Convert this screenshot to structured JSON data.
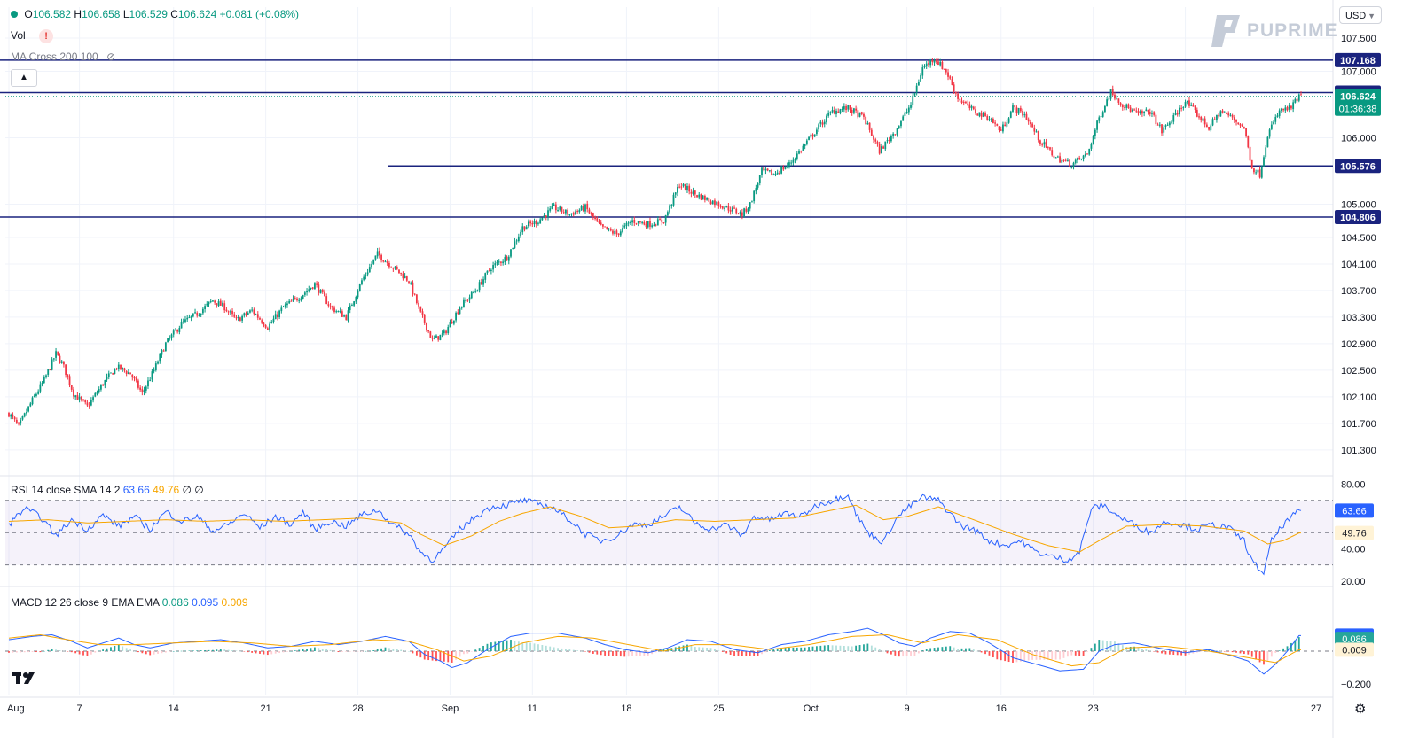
{
  "legend": {
    "open_label": "O",
    "open": "106.582",
    "high_label": "H",
    "high": "106.658",
    "low_label": "L",
    "low": "106.529",
    "close_label": "C",
    "close": "106.624",
    "change": "+0.081 (+0.08%)",
    "vol_label": "Vol",
    "ma_label": "MA Cross 200 100"
  },
  "brand": {
    "logo_text": "PUPRIME"
  },
  "currency": {
    "label": "USD"
  },
  "price_axis": {
    "ticks": [
      "107.500",
      "107.000",
      "106.000",
      "105.000",
      "104.500",
      "104.100",
      "103.700",
      "103.300",
      "102.900",
      "102.500",
      "102.100",
      "101.700",
      "101.300"
    ],
    "levels": [
      {
        "value": "107.168"
      },
      {
        "value": "106.680"
      },
      {
        "value": "105.576"
      },
      {
        "value": "104.806"
      }
    ],
    "current_price": "106.624",
    "countdown": "01:36:38"
  },
  "rsi": {
    "label": "RSI 14 close SMA 14 2",
    "rsi_value": "63.66",
    "sma_value": "49.76",
    "extra": "∅ ∅",
    "ticks": [
      "80.00",
      "40.00",
      "20.00"
    ]
  },
  "macd": {
    "label": "MACD 12 26 close 9 EMA EMA",
    "macd_value": "0.095",
    "signal_value": "0.009",
    "hist_value": "0.086",
    "ticks": [
      "0.095",
      "−0.200"
    ]
  },
  "time_axis": [
    "Aug",
    "7",
    "14",
    "21",
    "28",
    "Sep",
    "11",
    "18",
    "25",
    "Oct",
    "9",
    "16",
    "23",
    "27"
  ],
  "colors": {
    "up": "#089981",
    "down": "#f23645",
    "level_line": "#1a237e",
    "level_tag": "#1a237e",
    "rsi_line": "#2962ff",
    "sma_line": "#f7a600",
    "rsi_band": "#7e57c2"
  },
  "chart_data": {
    "type": "candlestick",
    "symbol_timeframe": "hourly-like OHLC series",
    "ylim": [
      101.0,
      107.6
    ],
    "anchors": [
      [
        0,
        101.85
      ],
      [
        5,
        101.65
      ],
      [
        12,
        102.05
      ],
      [
        18,
        102.35
      ],
      [
        24,
        102.75
      ],
      [
        28,
        102.55
      ],
      [
        33,
        102.15
      ],
      [
        40,
        101.95
      ],
      [
        48,
        102.3
      ],
      [
        55,
        102.55
      ],
      [
        62,
        102.45
      ],
      [
        68,
        102.15
      ],
      [
        74,
        102.5
      ],
      [
        80,
        102.9
      ],
      [
        88,
        103.2
      ],
      [
        96,
        103.35
      ],
      [
        104,
        103.55
      ],
      [
        110,
        103.45
      ],
      [
        116,
        103.25
      ],
      [
        124,
        103.4
      ],
      [
        132,
        103.15
      ],
      [
        140,
        103.45
      ],
      [
        148,
        103.6
      ],
      [
        156,
        103.8
      ],
      [
        164,
        103.45
      ],
      [
        172,
        103.3
      ],
      [
        180,
        103.85
      ],
      [
        188,
        104.25
      ],
      [
        196,
        104.05
      ],
      [
        204,
        103.85
      ],
      [
        210,
        103.35
      ],
      [
        216,
        102.95
      ],
      [
        222,
        103.05
      ],
      [
        230,
        103.45
      ],
      [
        238,
        103.7
      ],
      [
        246,
        104.05
      ],
      [
        254,
        104.2
      ],
      [
        262,
        104.65
      ],
      [
        270,
        104.75
      ],
      [
        278,
        104.95
      ],
      [
        286,
        104.85
      ],
      [
        294,
        104.95
      ],
      [
        302,
        104.65
      ],
      [
        310,
        104.55
      ],
      [
        318,
        104.75
      ],
      [
        326,
        104.7
      ],
      [
        334,
        104.75
      ],
      [
        342,
        105.3
      ],
      [
        350,
        105.15
      ],
      [
        358,
        105.05
      ],
      [
        366,
        104.95
      ],
      [
        374,
        104.85
      ],
      [
        378,
        105.0
      ],
      [
        384,
        105.5
      ],
      [
        390,
        105.45
      ],
      [
        398,
        105.6
      ],
      [
        406,
        105.9
      ],
      [
        414,
        106.2
      ],
      [
        420,
        106.4
      ],
      [
        428,
        106.45
      ],
      [
        436,
        106.3
      ],
      [
        444,
        105.8
      ],
      [
        452,
        106.1
      ],
      [
        460,
        106.5
      ],
      [
        466,
        107.05
      ],
      [
        472,
        107.2
      ],
      [
        478,
        107.0
      ],
      [
        484,
        106.6
      ],
      [
        492,
        106.4
      ],
      [
        500,
        106.3
      ],
      [
        506,
        106.1
      ],
      [
        512,
        106.45
      ],
      [
        518,
        106.35
      ],
      [
        526,
        105.95
      ],
      [
        534,
        105.7
      ],
      [
        542,
        105.6
      ],
      [
        550,
        105.75
      ],
      [
        556,
        106.3
      ],
      [
        562,
        106.7
      ],
      [
        568,
        106.5
      ],
      [
        576,
        106.35
      ],
      [
        582,
        106.4
      ],
      [
        588,
        106.1
      ],
      [
        594,
        106.3
      ],
      [
        600,
        106.55
      ],
      [
        606,
        106.35
      ],
      [
        612,
        106.15
      ],
      [
        618,
        106.4
      ],
      [
        624,
        106.3
      ],
      [
        630,
        106.15
      ],
      [
        634,
        105.55
      ],
      [
        638,
        105.45
      ],
      [
        642,
        106.05
      ],
      [
        648,
        106.4
      ],
      [
        654,
        106.45
      ],
      [
        658,
        106.62
      ]
    ],
    "levels": [
      107.168,
      106.68,
      105.576,
      104.806
    ],
    "rsi": {
      "ylim": [
        20,
        80
      ],
      "upper_band": 70,
      "lower_band": 30,
      "mid": 50,
      "rsi_anchors": [
        [
          0,
          55
        ],
        [
          8,
          65
        ],
        [
          16,
          60
        ],
        [
          24,
          48
        ],
        [
          32,
          58
        ],
        [
          40,
          52
        ],
        [
          48,
          61
        ],
        [
          56,
          54
        ],
        [
          64,
          60
        ],
        [
          72,
          52
        ],
        [
          80,
          63
        ],
        [
          88,
          57
        ],
        [
          96,
          60
        ],
        [
          104,
          51
        ],
        [
          112,
          55
        ],
        [
          120,
          62
        ],
        [
          128,
          53
        ],
        [
          136,
          60
        ],
        [
          144,
          55
        ],
        [
          150,
          63
        ],
        [
          156,
          52
        ],
        [
          164,
          57
        ],
        [
          172,
          54
        ],
        [
          180,
          61
        ],
        [
          188,
          64
        ],
        [
          196,
          55
        ],
        [
          204,
          49
        ],
        [
          210,
          38
        ],
        [
          216,
          33
        ],
        [
          222,
          40
        ],
        [
          230,
          52
        ],
        [
          238,
          60
        ],
        [
          246,
          66
        ],
        [
          254,
          67
        ],
        [
          262,
          70
        ],
        [
          270,
          68
        ],
        [
          278,
          65
        ],
        [
          286,
          58
        ],
        [
          294,
          49
        ],
        [
          302,
          45
        ],
        [
          310,
          48
        ],
        [
          318,
          55
        ],
        [
          326,
          55
        ],
        [
          334,
          60
        ],
        [
          342,
          66
        ],
        [
          350,
          56
        ],
        [
          358,
          52
        ],
        [
          366,
          55
        ],
        [
          374,
          48
        ],
        [
          380,
          60
        ],
        [
          388,
          58
        ],
        [
          396,
          62
        ],
        [
          404,
          60
        ],
        [
          412,
          67
        ],
        [
          420,
          70
        ],
        [
          428,
          74
        ],
        [
          432,
          62
        ],
        [
          438,
          50
        ],
        [
          446,
          44
        ],
        [
          452,
          58
        ],
        [
          458,
          65
        ],
        [
          466,
          72
        ],
        [
          474,
          70
        ],
        [
          480,
          62
        ],
        [
          486,
          54
        ],
        [
          492,
          52
        ],
        [
          500,
          45
        ],
        [
          508,
          42
        ],
        [
          516,
          45
        ],
        [
          524,
          38
        ],
        [
          532,
          35
        ],
        [
          540,
          33
        ],
        [
          546,
          38
        ],
        [
          552,
          65
        ],
        [
          558,
          67
        ],
        [
          566,
          60
        ],
        [
          574,
          55
        ],
        [
          582,
          50
        ],
        [
          590,
          57
        ],
        [
          598,
          55
        ],
        [
          606,
          52
        ],
        [
          614,
          55
        ],
        [
          622,
          53
        ],
        [
          630,
          45
        ],
        [
          634,
          32
        ],
        [
          640,
          25
        ],
        [
          644,
          45
        ],
        [
          650,
          55
        ],
        [
          658,
          63.66
        ]
      ],
      "sma_anchors": [
        [
          0,
          57
        ],
        [
          20,
          58
        ],
        [
          40,
          56
        ],
        [
          60,
          57
        ],
        [
          80,
          58
        ],
        [
          100,
          57
        ],
        [
          120,
          58
        ],
        [
          140,
          57
        ],
        [
          160,
          58
        ],
        [
          180,
          59
        ],
        [
          200,
          56
        ],
        [
          210,
          49
        ],
        [
          222,
          42
        ],
        [
          236,
          48
        ],
        [
          250,
          57
        ],
        [
          262,
          62
        ],
        [
          276,
          66
        ],
        [
          292,
          60
        ],
        [
          306,
          53
        ],
        [
          320,
          54
        ],
        [
          340,
          58
        ],
        [
          360,
          57
        ],
        [
          380,
          58
        ],
        [
          400,
          59
        ],
        [
          420,
          64
        ],
        [
          432,
          67
        ],
        [
          446,
          58
        ],
        [
          458,
          60
        ],
        [
          474,
          66
        ],
        [
          492,
          58
        ],
        [
          512,
          49
        ],
        [
          530,
          42
        ],
        [
          546,
          38
        ],
        [
          556,
          45
        ],
        [
          570,
          54
        ],
        [
          590,
          55
        ],
        [
          610,
          54
        ],
        [
          630,
          51
        ],
        [
          642,
          43
        ],
        [
          650,
          45
        ],
        [
          658,
          49.76
        ]
      ]
    },
    "macd": {
      "ylim": [
        -0.24,
        0.14
      ],
      "zero": 0,
      "macd_anchors": [
        [
          0,
          0.07
        ],
        [
          12,
          0.09
        ],
        [
          22,
          0.1
        ],
        [
          32,
          0.06
        ],
        [
          40,
          0.02
        ],
        [
          48,
          0.05
        ],
        [
          56,
          0.08
        ],
        [
          64,
          0.04
        ],
        [
          72,
          0.02
        ],
        [
          84,
          0.05
        ],
        [
          96,
          0.06
        ],
        [
          108,
          0.07
        ],
        [
          120,
          0.05
        ],
        [
          132,
          0.02
        ],
        [
          144,
          0.03
        ],
        [
          156,
          0.06
        ],
        [
          168,
          0.04
        ],
        [
          180,
          0.06
        ],
        [
          192,
          0.09
        ],
        [
          204,
          0.06
        ],
        [
          212,
          -0.02
        ],
        [
          220,
          -0.06
        ],
        [
          226,
          -0.1
        ],
        [
          234,
          -0.07
        ],
        [
          244,
          0.01
        ],
        [
          256,
          0.09
        ],
        [
          266,
          0.11
        ],
        [
          280,
          0.11
        ],
        [
          294,
          0.08
        ],
        [
          304,
          0.04
        ],
        [
          314,
          0.01
        ],
        [
          326,
          -0.01
        ],
        [
          336,
          0.02
        ],
        [
          346,
          0.07
        ],
        [
          358,
          0.06
        ],
        [
          370,
          0.01
        ],
        [
          382,
          -0.01
        ],
        [
          394,
          0.04
        ],
        [
          406,
          0.06
        ],
        [
          418,
          0.1
        ],
        [
          430,
          0.12
        ],
        [
          438,
          0.14
        ],
        [
          446,
          0.1
        ],
        [
          454,
          0.05
        ],
        [
          462,
          0.03
        ],
        [
          470,
          0.08
        ],
        [
          480,
          0.12
        ],
        [
          490,
          0.11
        ],
        [
          500,
          0.05
        ],
        [
          512,
          -0.04
        ],
        [
          524,
          -0.08
        ],
        [
          536,
          -0.12
        ],
        [
          548,
          -0.11
        ],
        [
          556,
          0.0
        ],
        [
          564,
          0.04
        ],
        [
          574,
          0.05
        ],
        [
          586,
          0.02
        ],
        [
          600,
          -0.01
        ],
        [
          612,
          0.01
        ],
        [
          624,
          -0.03
        ],
        [
          632,
          -0.06
        ],
        [
          640,
          -0.14
        ],
        [
          646,
          -0.08
        ],
        [
          652,
          0.0
        ],
        [
          658,
          0.095
        ]
      ],
      "signal_anchors": [
        [
          0,
          0.08
        ],
        [
          16,
          0.1
        ],
        [
          30,
          0.07
        ],
        [
          46,
          0.04
        ],
        [
          64,
          0.04
        ],
        [
          84,
          0.05
        ],
        [
          104,
          0.06
        ],
        [
          124,
          0.05
        ],
        [
          144,
          0.03
        ],
        [
          164,
          0.04
        ],
        [
          186,
          0.07
        ],
        [
          204,
          0.06
        ],
        [
          218,
          0.01
        ],
        [
          232,
          -0.06
        ],
        [
          246,
          -0.03
        ],
        [
          262,
          0.05
        ],
        [
          280,
          0.09
        ],
        [
          298,
          0.08
        ],
        [
          316,
          0.04
        ],
        [
          334,
          0.0
        ],
        [
          350,
          0.04
        ],
        [
          368,
          0.04
        ],
        [
          388,
          0.01
        ],
        [
          408,
          0.04
        ],
        [
          430,
          0.09
        ],
        [
          448,
          0.1
        ],
        [
          466,
          0.05
        ],
        [
          484,
          0.1
        ],
        [
          504,
          0.07
        ],
        [
          522,
          -0.02
        ],
        [
          542,
          -0.09
        ],
        [
          556,
          -0.07
        ],
        [
          570,
          0.02
        ],
        [
          590,
          0.03
        ],
        [
          612,
          0.0
        ],
        [
          632,
          -0.04
        ],
        [
          646,
          -0.07
        ],
        [
          658,
          0.009
        ]
      ]
    }
  }
}
